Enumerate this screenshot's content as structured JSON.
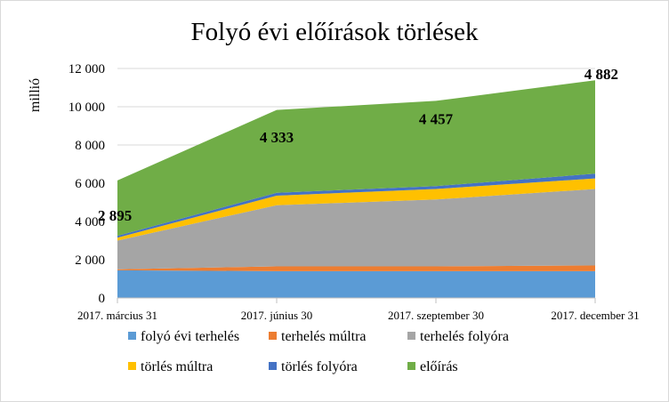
{
  "chart_data": {
    "type": "area",
    "stacked": true,
    "title": "Folyó évi előírások törlések",
    "xlabel": "",
    "ylabel": "millió",
    "ylim": [
      0,
      12000
    ],
    "yticks": [
      0,
      2000,
      4000,
      6000,
      8000,
      10000,
      12000
    ],
    "ytick_labels": [
      "0",
      "2 000",
      "4 000",
      "6 000",
      "8 000",
      "10 000",
      "12 000"
    ],
    "categories": [
      "2017. március 31",
      "2017. június 30",
      "2017. szeptember 30",
      "2017. december 31"
    ],
    "grid": true,
    "legend_position": "bottom",
    "series": [
      {
        "name": "folyó évi terhelés",
        "color": "#5b9bd5",
        "values": [
          1450,
          1400,
          1400,
          1400
        ]
      },
      {
        "name": "terhelés múltra",
        "color": "#ed7d31",
        "values": [
          50,
          250,
          250,
          300
        ]
      },
      {
        "name": "terhelés folyóra",
        "color": "#a5a5a5",
        "values": [
          1500,
          3200,
          3500,
          4000
        ]
      },
      {
        "name": "törlés múltra",
        "color": "#ffc000",
        "values": [
          150,
          500,
          550,
          550
        ]
      },
      {
        "name": "törlés folyóra",
        "color": "#4472c4",
        "values": [
          100,
          150,
          150,
          250
        ]
      },
      {
        "name": "előírás",
        "color": "#70ad47",
        "values": [
          2895,
          4333,
          4457,
          4882
        ]
      }
    ],
    "data_labels": [
      {
        "series": "előírás",
        "index": 0,
        "text": "2 895"
      },
      {
        "series": "előírás",
        "index": 1,
        "text": "4 333"
      },
      {
        "series": "előírás",
        "index": 2,
        "text": "4 457"
      },
      {
        "series": "előírás",
        "index": 3,
        "text": "4 882"
      }
    ]
  }
}
